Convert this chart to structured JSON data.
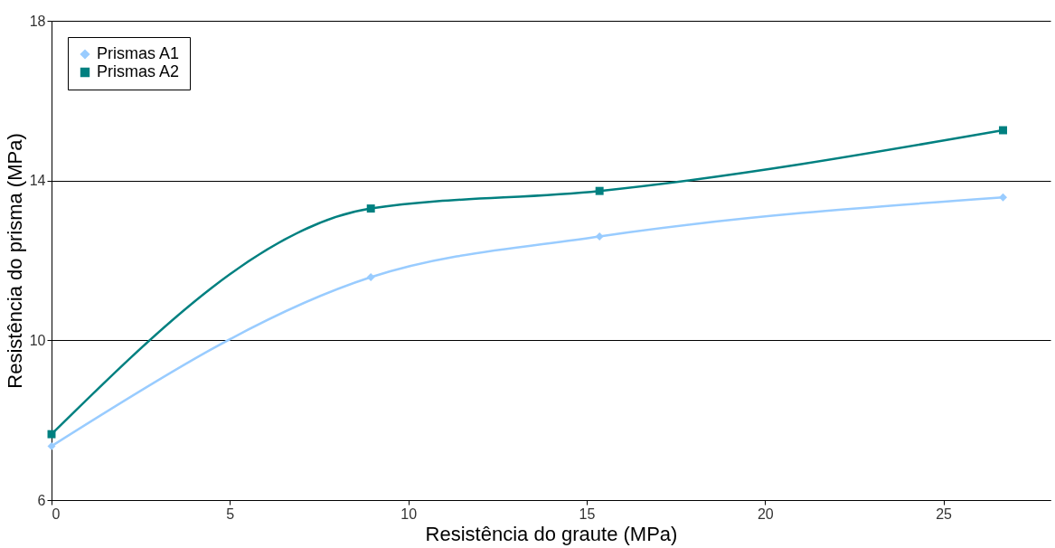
{
  "chart_data": {
    "type": "line",
    "xlabel": "Resistência do graute (MPa)",
    "ylabel": "Resistência do prisma (MPa)",
    "xlim": [
      0,
      28
    ],
    "xticks": [
      0,
      5,
      10,
      15,
      20,
      25
    ],
    "ylim": [
      6,
      18
    ],
    "yticks": [
      6,
      10,
      14,
      18
    ],
    "grid": "y",
    "legend": "top left",
    "series": [
      {
        "name": "Prismas A1",
        "color": "#99ccff",
        "marker": "diamond",
        "x": [
          0,
          8.95,
          15.36,
          26.67
        ],
        "values": [
          7.35,
          11.58,
          12.6,
          13.58
        ]
      },
      {
        "name": "Prismas A2",
        "color": "#008080",
        "marker": "square",
        "x": [
          0,
          8.95,
          15.36,
          26.67
        ],
        "values": [
          7.65,
          13.3,
          13.74,
          15.26
        ]
      }
    ]
  }
}
